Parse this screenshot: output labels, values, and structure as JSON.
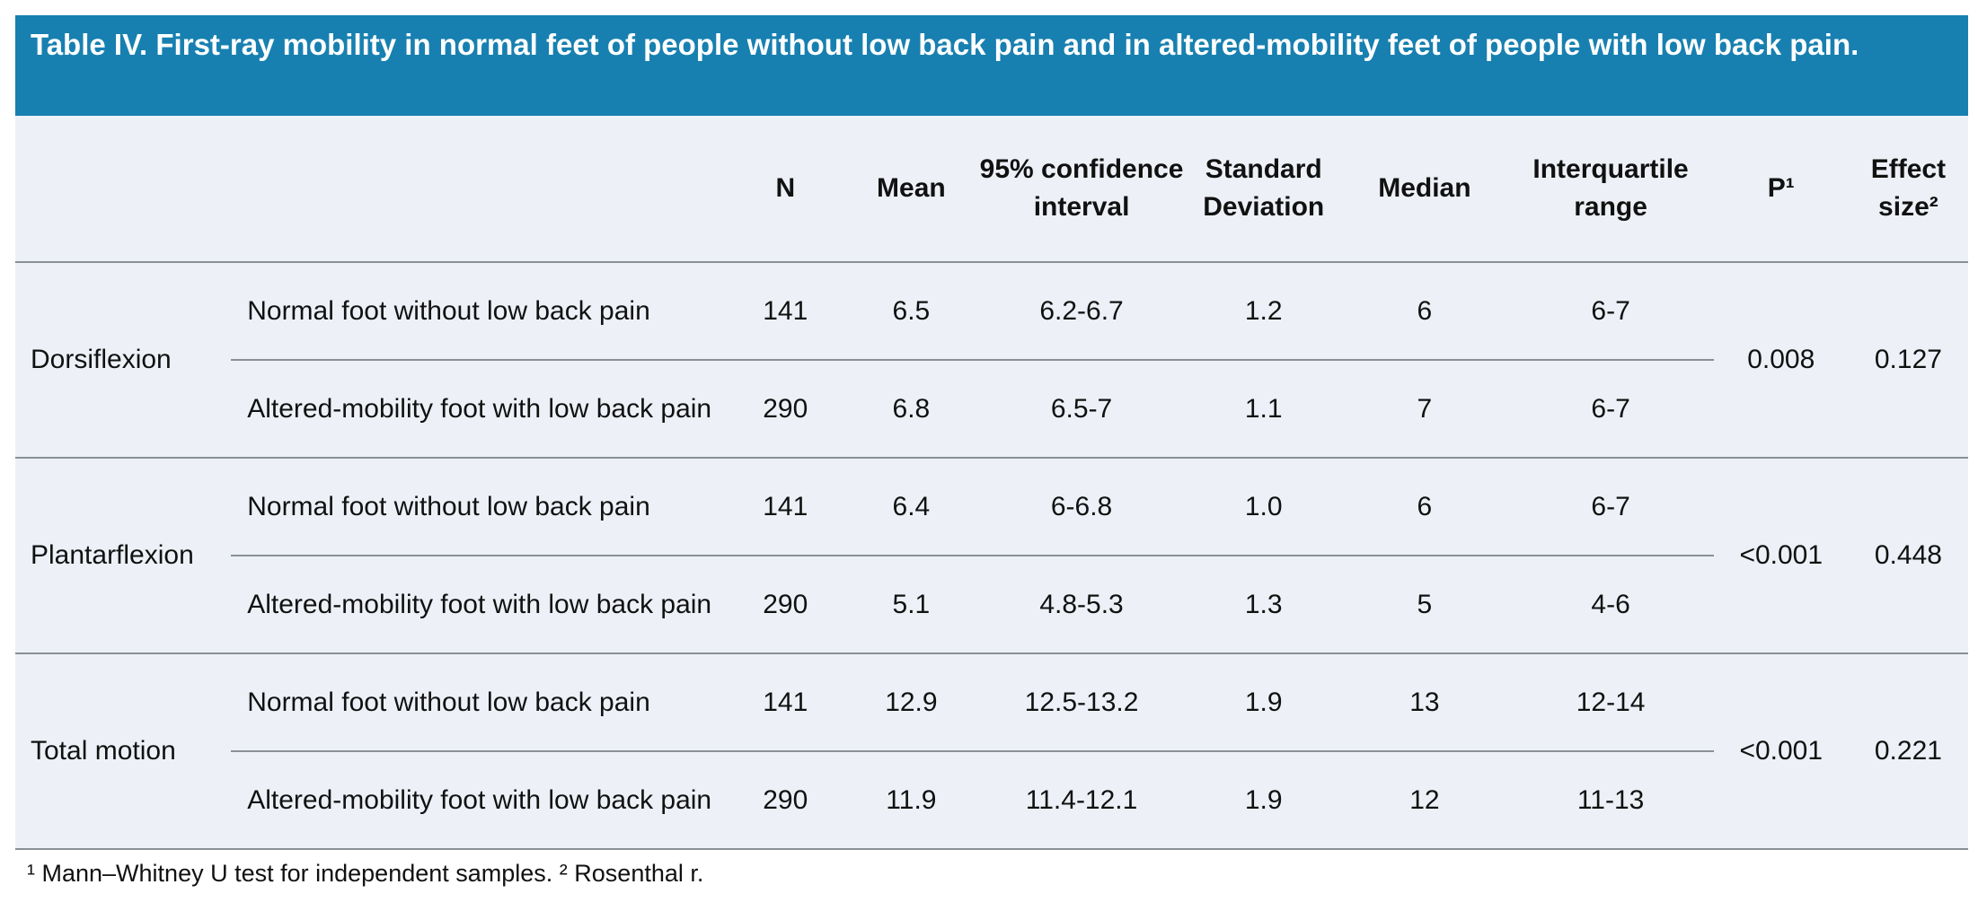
{
  "header": {
    "title": "Table IV. First-ray mobility in normal feet of people without low back pain and in altered-mobility feet of people with low back pain."
  },
  "table": {
    "columns": [
      "N",
      "Mean",
      "95% confidence interval",
      "Standard Deviation",
      "Median",
      "Interquartile range",
      "P¹",
      "Effect size²"
    ],
    "groups": [
      {
        "label": "Dorsiflexion",
        "p": "0.008",
        "effect": "0.127",
        "rows": [
          {
            "label": "Normal foot without low back pain",
            "n": "141",
            "mean": "6.5",
            "ci": "6.2-6.7",
            "sd": "1.2",
            "median": "6",
            "iqr": "6-7"
          },
          {
            "label": "Altered-mobility foot with low back pain",
            "n": "290",
            "mean": "6.8",
            "ci": "6.5-7",
            "sd": "1.1",
            "median": "7",
            "iqr": "6-7"
          }
        ]
      },
      {
        "label": "Plantarflexion",
        "p": "<0.001",
        "effect": "0.448",
        "rows": [
          {
            "label": "Normal foot without low back pain",
            "n": "141",
            "mean": "6.4",
            "ci": "6-6.8",
            "sd": "1.0",
            "median": "6",
            "iqr": "6-7"
          },
          {
            "label": "Altered-mobility foot with low back pain",
            "n": "290",
            "mean": "5.1",
            "ci": "4.8-5.3",
            "sd": "1.3",
            "median": "5",
            "iqr": "4-6"
          }
        ]
      },
      {
        "label": "Total motion",
        "p": "<0.001",
        "effect": "0.221",
        "rows": [
          {
            "label": "Normal foot without low back pain",
            "n": "141",
            "mean": "12.9",
            "ci": "12.5-13.2",
            "sd": "1.9",
            "median": "13",
            "iqr": "12-14"
          },
          {
            "label": "Altered-mobility foot with low back pain",
            "n": "290",
            "mean": "11.9",
            "ci": "11.4-12.1",
            "sd": "1.9",
            "median": "12",
            "iqr": "11-13"
          }
        ]
      }
    ]
  },
  "footnote": "¹ Mann–Whitney U test for independent samples. ² Rosenthal r."
}
